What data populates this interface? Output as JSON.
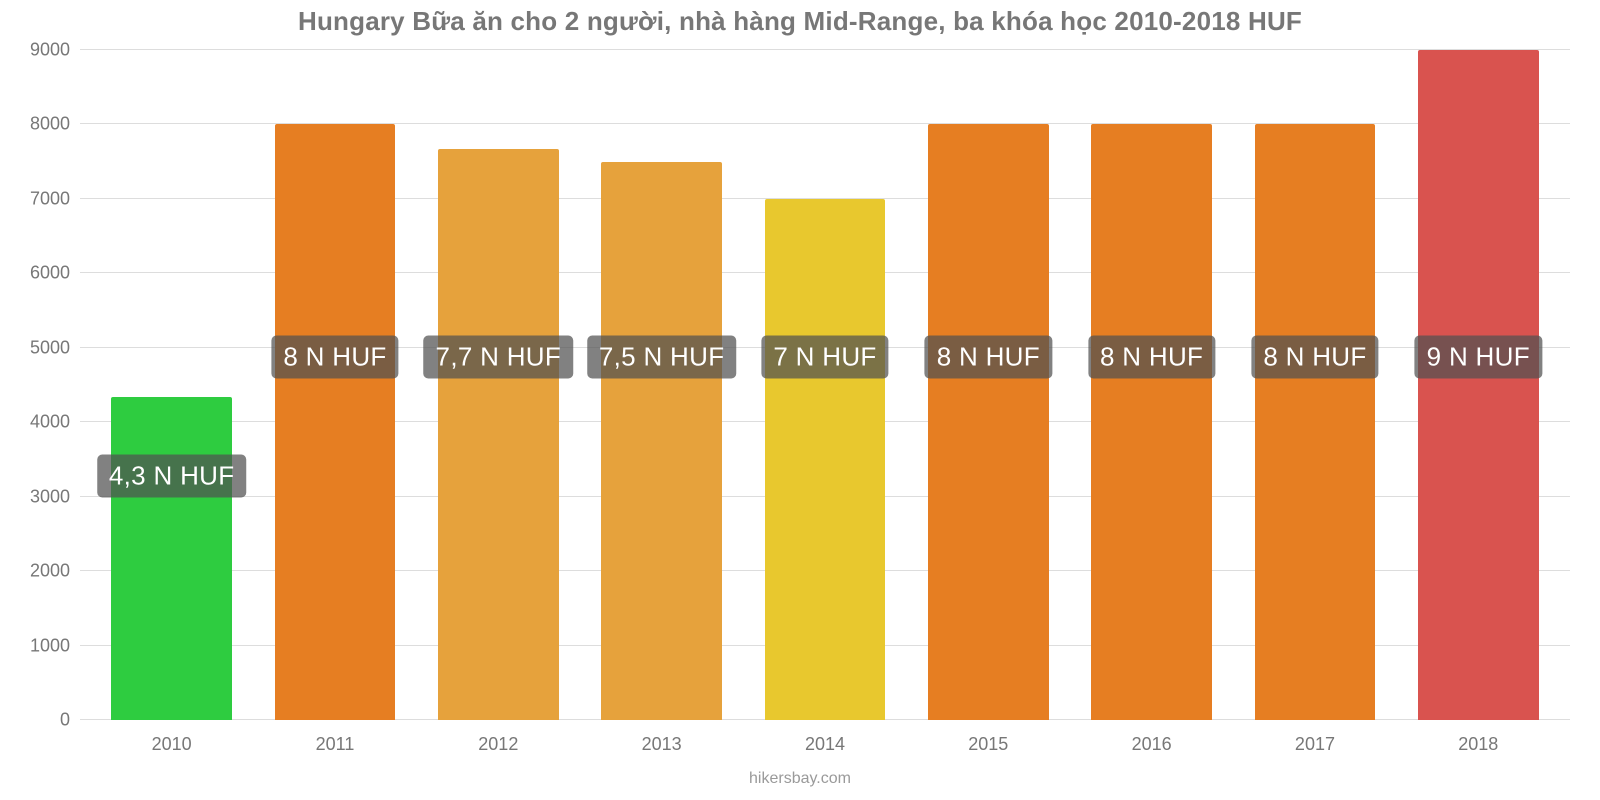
{
  "chart": {
    "type": "bar",
    "title": "Hungary Bữa ăn cho 2 người, nhà hàng Mid-Range, ba khóa học 2010-2018 HUF",
    "title_color": "#777777",
    "title_fontsize": 26,
    "background_color": "#ffffff",
    "grid_color": "#dddddd",
    "axis_label_color": "#777777",
    "axis_label_fontsize": 18,
    "data_label_fontsize": 26,
    "data_label_bg": "rgba(80,80,80,0.72)",
    "data_label_color": "#ffffff",
    "bar_width_pct": 74,
    "ylim": [
      0,
      9000
    ],
    "ytick_step": 1000,
    "yticks": [
      0,
      1000,
      2000,
      3000,
      4000,
      5000,
      6000,
      7000,
      8000,
      9000
    ],
    "categories": [
      "2010",
      "2011",
      "2012",
      "2013",
      "2014",
      "2015",
      "2016",
      "2017",
      "2018"
    ],
    "values": [
      4333,
      8000,
      7667,
      7500,
      7000,
      8000,
      8000,
      8000,
      9000
    ],
    "bar_colors": [
      "#2ecc40",
      "#e67e22",
      "#e6a23c",
      "#e6a23c",
      "#e8c82e",
      "#e67e22",
      "#e67e22",
      "#e67e22",
      "#d9534f"
    ],
    "value_labels": [
      "4,3 N HUF",
      "8 N HUF",
      "7,7 N HUF",
      "7,5 N HUF",
      "7 N HUF",
      "8 N HUF",
      "8 N HUF",
      "8 N HUF",
      "9 N HUF"
    ],
    "label_y_value": 4300,
    "first_label_y_value": 2700,
    "credit": "hikersbay.com"
  }
}
